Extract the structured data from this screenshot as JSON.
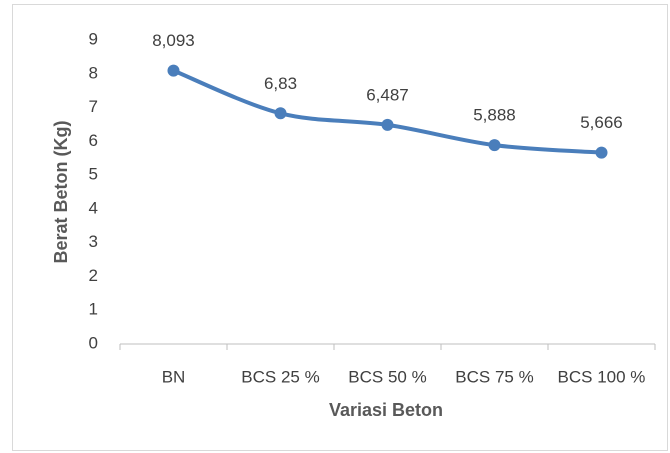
{
  "chart_data": {
    "type": "line",
    "x_label": "Variasi Beton",
    "y_label": "Berat Beton (Kg)",
    "categories": [
      "BN",
      "BCS 25 %",
      "BCS 50 %",
      "BCS 75 %",
      "BCS 100 %"
    ],
    "series": [
      {
        "name": "Berat Beton",
        "color": "#4a7ebb",
        "values": [
          8.093,
          6.83,
          6.487,
          5.888,
          5.666
        ],
        "value_labels": [
          "8,093",
          "6,83",
          "6,487",
          "5,888",
          "5,666"
        ]
      }
    ],
    "ylim": [
      0,
      9
    ],
    "yticks": [
      0,
      1,
      2,
      3,
      4,
      5,
      6,
      7,
      8,
      9
    ],
    "grid": false,
    "smooth": true
  }
}
